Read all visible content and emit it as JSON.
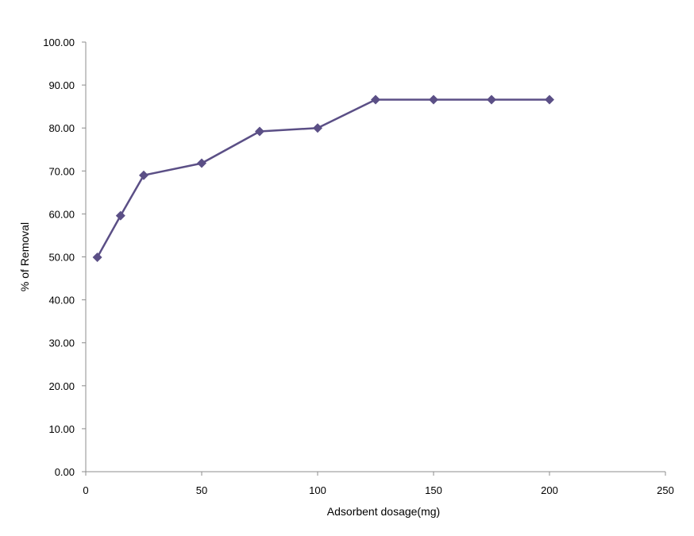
{
  "chart_data": {
    "type": "line",
    "title": "",
    "xlabel": "Adsorbent dosage(mg)",
    "ylabel": "% of Removal",
    "xlim": [
      0,
      250
    ],
    "ylim": [
      0,
      100
    ],
    "x_ticks": [
      "0",
      "50",
      "100",
      "150",
      "200",
      "250"
    ],
    "y_ticks": [
      "0.00",
      "10.00",
      "20.00",
      "30.00",
      "40.00",
      "50.00",
      "60.00",
      "70.00",
      "80.00",
      "90.00",
      "100.00"
    ],
    "grid": false,
    "legend": "none",
    "marker": "diamond",
    "series": [
      {
        "color": "#5B4F86",
        "points": [
          {
            "x": 5,
            "y": 49.9
          },
          {
            "x": 15,
            "y": 59.6
          },
          {
            "x": 25,
            "y": 69.0
          },
          {
            "x": 50,
            "y": 71.8
          },
          {
            "x": 75,
            "y": 79.2
          },
          {
            "x": 100,
            "y": 80.0
          },
          {
            "x": 125,
            "y": 86.6
          },
          {
            "x": 150,
            "y": 86.6
          },
          {
            "x": 175,
            "y": 86.6
          },
          {
            "x": 200,
            "y": 86.6
          }
        ]
      }
    ]
  }
}
